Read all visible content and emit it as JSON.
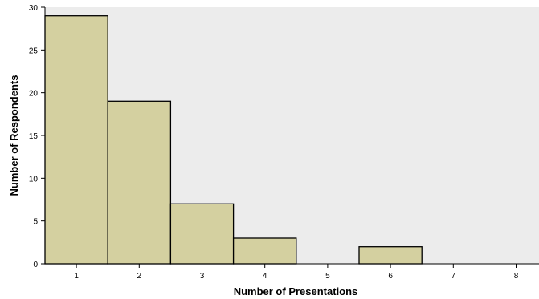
{
  "chart_data": {
    "type": "bar",
    "title": "",
    "xlabel": "Number of Presentations",
    "ylabel": "Number of Respondents",
    "categories": [
      "1",
      "2",
      "3",
      "4",
      "5",
      "6",
      "7",
      "8"
    ],
    "values": [
      29,
      19,
      7,
      3,
      0,
      2,
      0,
      0
    ],
    "ylim": [
      0,
      30
    ],
    "yticks": [
      0,
      5,
      10,
      15,
      20,
      25,
      30
    ],
    "grid": false,
    "colors": {
      "bar_fill": "#d4d0a0",
      "bar_stroke": "#000000",
      "plot_background": "#ececec"
    }
  }
}
